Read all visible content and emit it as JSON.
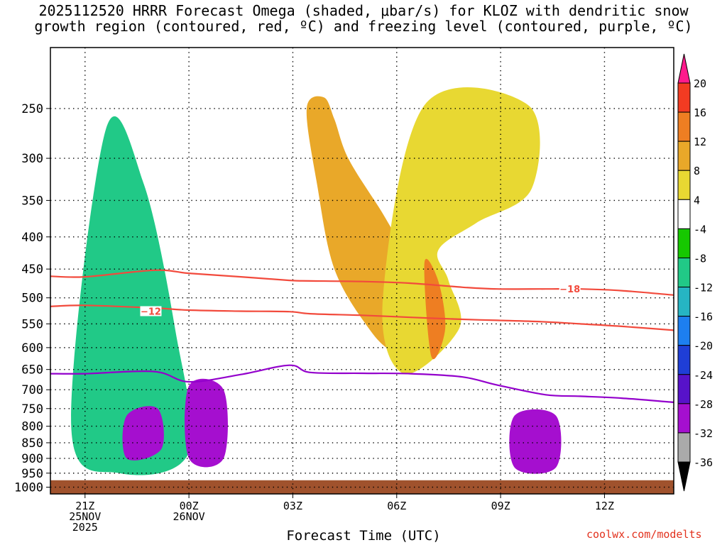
{
  "title": {
    "line1": "2025112520 HRRR Forecast Omega (shaded, μbar/s) for KLOZ with dendritic snow",
    "line2": "growth region (contoured, red, ºC) and freezing level (contoured, purple, ºC)"
  },
  "credit": "coolwx.com/modelts",
  "chart_data": {
    "type": "contour",
    "title": "2025112520 HRRR Forecast Omega (shaded, μbar/s) for KLOZ with dendritic snow growth region (contoured, red, ºC) and freezing level (contoured, purple, ºC)",
    "xlabel": "Forecast Time (UTC)",
    "ylabel": "",
    "x_ticks": [
      {
        "hour": 21,
        "lines": [
          "21Z",
          "25NOV",
          "2025"
        ]
      },
      {
        "hour": 24,
        "lines": [
          "00Z",
          "26NOV"
        ]
      },
      {
        "hour": 27,
        "lines": [
          "03Z"
        ]
      },
      {
        "hour": 30,
        "lines": [
          "06Z"
        ]
      },
      {
        "hour": 33,
        "lines": [
          "09Z"
        ]
      },
      {
        "hour": 36,
        "lines": [
          "12Z"
        ]
      }
    ],
    "xlim": [
      20,
      38
    ],
    "y_ticks": [
      250,
      300,
      350,
      400,
      450,
      500,
      550,
      600,
      650,
      700,
      750,
      800,
      850,
      900,
      950,
      1000
    ],
    "ylim": [
      1025,
      200
    ],
    "y_scale": "log-pressure",
    "grid": true,
    "colorbar": {
      "labels": [
        "20",
        "16",
        "12",
        "8",
        "4",
        "-4",
        "-8",
        "-12",
        "-16",
        "-20",
        "-24",
        "-28",
        "-32",
        "-36"
      ],
      "colors": [
        "#ff1a8c",
        "#f23b22",
        "#ee7e22",
        "#e9a829",
        "#e8d832",
        "#ffffff",
        "#16c800",
        "#21c987",
        "#26b5c3",
        "#1d7ff0",
        "#1f3ed6",
        "#5712c9",
        "#a50fcf",
        "#aaaaaa",
        "#000000"
      ]
    },
    "contours": [
      {
        "name": "-12",
        "color": "#f24a3c",
        "p": [
          516,
          514,
          519,
          523,
          525,
          526,
          530,
          533,
          537,
          541,
          543,
          546,
          550,
          555,
          563
        ]
      },
      {
        "name": "-18",
        "color": "#f24a3c",
        "p": [
          462,
          463,
          452,
          457,
          463,
          469,
          470,
          471,
          474,
          481,
          484,
          484,
          484,
          487,
          495
        ]
      },
      {
        "name": "freezing level",
        "color": "#9300cc",
        "p": [
          660,
          660,
          655,
          680,
          662,
          640,
          657,
          659,
          660,
          668,
          688,
          713,
          717,
          722,
          733
        ]
      }
    ],
    "contour_hours": [
      20,
      21,
      23,
      24,
      25.5,
      26.9,
      27.5,
      29,
      30.4,
      31.9,
      32.9,
      34.3,
      35.3,
      36.5,
      38
    ],
    "contour_labels": [
      {
        "name": "-12",
        "hour": 22.9,
        "p": 525
      },
      {
        "name": "-18",
        "hour": 35.0,
        "p": 484
      }
    ],
    "omega_regions": [
      {
        "name": "sinking",
        "value": 8,
        "hours": [
          27.4,
          27.9,
          28.2,
          28.6,
          29.5,
          30.1,
          30.4,
          30.8,
          31.1,
          30.6,
          29.9,
          29.2,
          28.2,
          27.7
        ],
        "p": [
          250,
          240,
          260,
          300,
          360,
          405,
          395,
          430,
          520,
          620,
          610,
          560,
          450,
          330
        ]
      },
      {
        "name": "sinking",
        "value": 4,
        "hours": [
          30.8,
          33.8,
          33.9,
          32.3,
          31.2,
          31.5,
          31.8,
          30.2,
          29.6
        ],
        "p": [
          247,
          247,
          335,
          380,
          420,
          470,
          560,
          660,
          500
        ]
      },
      {
        "name": "sinking-core",
        "value": 12,
        "hours": [
          30.8,
          31.2,
          31.4,
          31.0
        ],
        "p": [
          440,
          470,
          560,
          620
        ]
      },
      {
        "name": "rising",
        "value": -10,
        "hours": [
          21.6,
          22.7,
          23.6,
          24.0,
          22.0,
          20.6
        ],
        "p": [
          270,
          330,
          560,
          880,
          950,
          800
        ]
      },
      {
        "name": "rising",
        "value": -30,
        "hours": [
          22.2,
          23.1,
          23.2,
          22.2
        ],
        "p": [
          770,
          750,
          870,
          900
        ]
      },
      {
        "name": "rising",
        "value": -30,
        "hours": [
          24.0,
          25.0,
          25.0,
          24.0
        ],
        "p": [
          690,
          700,
          900,
          900
        ]
      },
      {
        "name": "rising",
        "value": -30,
        "hours": [
          33.4,
          34.6,
          34.6,
          33.4
        ],
        "p": [
          770,
          770,
          930,
          930
        ]
      }
    ]
  }
}
